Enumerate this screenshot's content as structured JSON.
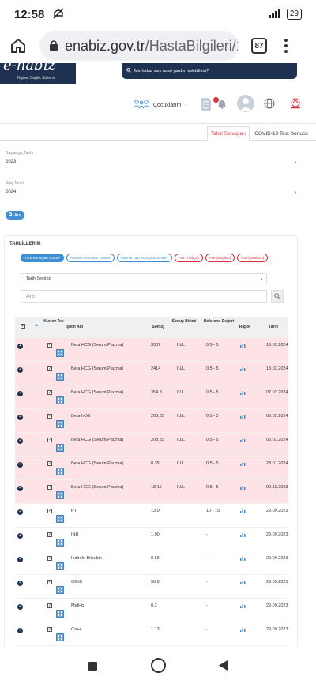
{
  "status": {
    "time": "12:58",
    "battery": "29"
  },
  "browser": {
    "url_domain": "enabiz.gov.tr",
    "url_path": "/HastaBilgileri/1",
    "tab_count": "87"
  },
  "site": {
    "brand": "e-nabız",
    "brand_sub": "Kişisel Sağlık Sistemi",
    "help_placeholder": "Merhaba, size nasıl yardım edebilirim?",
    "kids_label": "Çocuklarım",
    "notification_count": "1"
  },
  "tabs": [
    {
      "label": "Tahlil Sonuçları"
    },
    {
      "label": "COVID-19 Test Sonucu"
    }
  ],
  "form": {
    "start_label": "Başlangıç Tarihi",
    "start_value": "2023",
    "end_label": "Bitiş Tarihi",
    "end_value": "2024",
    "search_button": "Ara"
  },
  "card": {
    "title": "TAHLİLLERİM",
    "filters": [
      "Tüm Sonuçları Göster",
      "Normal Sonuçları Göster",
      "Normal Dışı Sonuçları Göster",
      "PDF(Türkçe)",
      "PDF(English)",
      "PDF(Deutsch)"
    ],
    "date_select": "Tarih Seçiniz",
    "search_placeholder": "Ara"
  },
  "table": {
    "headers": {
      "kurum": "Kurum Adı",
      "islem": "İşlem Adı",
      "sonuc": "Sonuç",
      "birim": "Sonuç Birimi",
      "referans": "Referans Değeri",
      "rapor": "Rapor",
      "tarih": "Tarih"
    },
    "rows": [
      {
        "name": "Beta HCG (Serum/Plazma)",
        "result": "3537",
        "unit": "IU/L",
        "ref": "0.5 - 5",
        "date": "19.02.2024",
        "abnormal": true
      },
      {
        "name": "Beta HCG (Serum/Plazma)",
        "result": "2414",
        "unit": "IU/L",
        "ref": "0.5 - 5",
        "date": "13.02.2024",
        "abnormal": true
      },
      {
        "name": "Beta HCG (Serum/Plazma)",
        "result": "354.8",
        "unit": "IU/L",
        "ref": "0.5 - 5",
        "date": "07.02.2024",
        "abnormal": true
      },
      {
        "name": "Beta-hCG",
        "result": "203,83",
        "unit": "IU/L",
        "ref": "0,5 - 5",
        "date": "06.02.2024",
        "abnormal": true
      },
      {
        "name": "Beta HCG (Serum/Plazma)",
        "result": "203.83",
        "unit": "IU/L",
        "ref": "0.5 - 5",
        "date": "06.02.2024",
        "abnormal": true
      },
      {
        "name": "Beta HCG (Serum/Plazma)",
        "result": "0.35",
        "unit": "IU/L",
        "ref": "0.5 - 5",
        "date": "28.01.2024",
        "abnormal": true
      },
      {
        "name": "Beta HCG (Serum/Plazma)",
        "result": "18.15",
        "unit": "IU/L",
        "ref": "0.5 - 5",
        "date": "02.10.2023",
        "abnormal": true
      },
      {
        "name": "PT",
        "result": "13.0",
        "unit": "",
        "ref": "10 - 15",
        "date": "29.09.2023",
        "abnormal": false
      },
      {
        "name": "INR",
        "result": "1.00",
        "unit": "",
        "ref": "-",
        "date": "29.09.2023",
        "abnormal": false
      },
      {
        "name": "İndirekt Bilirubin",
        "result": "0.69",
        "unit": "",
        "ref": "-",
        "date": "29.09.2023",
        "abnormal": false
      },
      {
        "name": "O2hB",
        "result": "50.9",
        "unit": "",
        "ref": "-",
        "date": "29.09.2023",
        "abnormal": false
      },
      {
        "name": "MetHb",
        "result": "0.2",
        "unit": "",
        "ref": "-",
        "date": "29.09.2023",
        "abnormal": false
      },
      {
        "name": "Ca++",
        "result": "1.13",
        "unit": "",
        "ref": "-",
        "date": "29.09.2023",
        "abnormal": false
      }
    ]
  },
  "colors": {
    "navy": "#1f3150",
    "accent_blue": "#3f8fd4",
    "accent_red": "#d9303a",
    "abnormal_row": "#fde3e5"
  }
}
